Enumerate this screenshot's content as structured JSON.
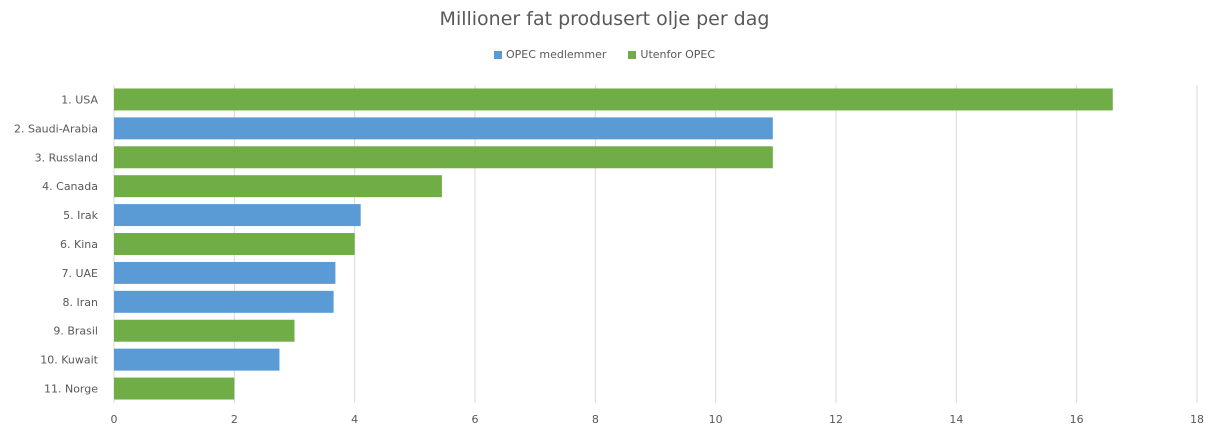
{
  "chart_data": {
    "type": "bar",
    "orientation": "horizontal",
    "title": "Millioner fat produsert olje per dag",
    "xlabel": "",
    "ylabel": "",
    "xlim": [
      0,
      18
    ],
    "xticks": [
      0,
      2,
      4,
      6,
      8,
      10,
      12,
      14,
      16,
      18
    ],
    "grid": true,
    "legend_position": "top",
    "legend": [
      {
        "name": "OPEC medlemmer",
        "color": "#5b9bd5"
      },
      {
        "name": "Utenfor OPEC",
        "color": "#70ad47"
      }
    ],
    "categories": [
      "1. USA",
      "2. Saudi-Arabia",
      "3. Russland",
      "4. Canada",
      "5. Irak",
      "6. Kina",
      "7. UAE",
      "8. Iran",
      "9. Brasil",
      "10. Kuwait",
      "11. Norge"
    ],
    "values": [
      16.6,
      10.95,
      10.95,
      5.45,
      4.1,
      4.0,
      3.68,
      3.65,
      3.0,
      2.75,
      2.0
    ],
    "groups": [
      "Utenfor OPEC",
      "OPEC medlemmer",
      "Utenfor OPEC",
      "Utenfor OPEC",
      "OPEC medlemmer",
      "Utenfor OPEC",
      "OPEC medlemmer",
      "OPEC medlemmer",
      "Utenfor OPEC",
      "OPEC medlemmer",
      "Utenfor OPEC"
    ]
  }
}
